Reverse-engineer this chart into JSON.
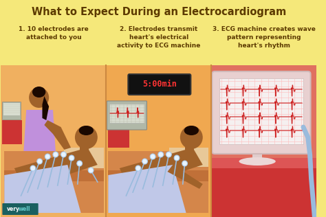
{
  "title": "What to Expect During an Electrocardiogram",
  "title_color": "#5C3A00",
  "title_fontsize": 10.5,
  "bg_color": "#F5E87A",
  "panel1_color": "#F0B060",
  "panel2_color": "#F0A850",
  "panel3_color": "#E07060",
  "divider_color": "#CC8840",
  "step_labels": [
    "1. 10 electrodes are\nattached to you",
    "2. Electrodes transmit\nheart's electrical\nactivity to ECG machine",
    "3. ECG machine creates wave\npattern representing\nheart's rhythm"
  ],
  "step_label_color": "#5C3A00",
  "step_fontsize": 6.5,
  "verywell_bg": "#1A6060",
  "timer_text": "5:00min",
  "timer_bg": "#1A1A1A",
  "timer_color": "#FF3333",
  "skin_color": "#A0622A",
  "nurse_color": "#C090DC",
  "hair_color": "#1A0800",
  "table_color": "#D4864A",
  "table_stripe": "#C07038",
  "electrode_color": "#DDEEFF",
  "wire_color": "#99BBDD",
  "monitor_frame": "#D0C8C8",
  "monitor_screen": "#F0ECEC",
  "ecg_color": "#CC2020",
  "grid_color": "#FFBBBB",
  "stand_color": "#E0CCCC",
  "cable_color": "#99BBDD",
  "red_box_color": "#CC3333"
}
